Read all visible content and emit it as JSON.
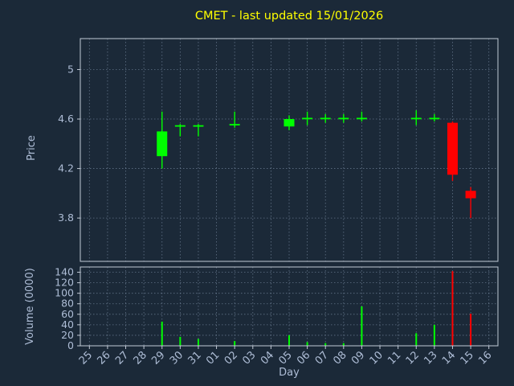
{
  "header": {
    "title": "CMET - last updated 15/01/2026"
  },
  "chart_data": {
    "type": "candlestick",
    "title": "CMET - last updated 15/01/2026",
    "xlabel": "Day",
    "ylabel": "Price",
    "ylabel2": "Volume (0000)",
    "x_tick_labels": [
      "25",
      "26",
      "27",
      "28",
      "29",
      "30",
      "31",
      "01",
      "02",
      "03",
      "04",
      "05",
      "06",
      "07",
      "08",
      "09",
      "10",
      "11",
      "12",
      "13",
      "14",
      "15",
      "16"
    ],
    "price_axis": {
      "ticks": [
        5,
        4.6,
        4.2,
        3.8
      ],
      "range": [
        3.45,
        5.25
      ]
    },
    "volume_axis": {
      "ticks": [
        140,
        120,
        100,
        80,
        60,
        40,
        20,
        0
      ],
      "range": [
        0,
        150
      ]
    },
    "colors": {
      "up": "#00ff00",
      "down": "#ff0000",
      "background": "#1b2938",
      "text": "#aebdd6",
      "title": "#ffff00",
      "grid": "#7e90a8",
      "frame": "#c2cad6"
    },
    "candles": [
      {
        "date": "29",
        "i": 4,
        "open": 4.3,
        "high": 4.66,
        "low": 4.2,
        "close": 4.5,
        "volume": 46
      },
      {
        "date": "30",
        "i": 5,
        "open": 4.55,
        "high": 4.56,
        "low": 4.46,
        "close": 4.55,
        "volume": 17
      },
      {
        "date": "31",
        "i": 6,
        "open": 4.55,
        "high": 4.56,
        "low": 4.46,
        "close": 4.55,
        "volume": 13
      },
      {
        "date": "02",
        "i": 8,
        "open": 4.55,
        "high": 4.66,
        "low": 4.53,
        "close": 4.56,
        "volume": 9
      },
      {
        "date": "05",
        "i": 11,
        "open": 4.54,
        "high": 4.63,
        "low": 4.51,
        "close": 4.6,
        "volume": 20
      },
      {
        "date": "06",
        "i": 12,
        "open": 4.6,
        "high": 4.66,
        "low": 4.55,
        "close": 4.61,
        "volume": 7
      },
      {
        "date": "07",
        "i": 13,
        "open": 4.6,
        "high": 4.64,
        "low": 4.57,
        "close": 4.61,
        "volume": 5
      },
      {
        "date": "08",
        "i": 14,
        "open": 4.6,
        "high": 4.64,
        "low": 4.57,
        "close": 4.61,
        "volume": 5
      },
      {
        "date": "09",
        "i": 15,
        "open": 4.6,
        "high": 4.66,
        "low": 4.58,
        "close": 4.61,
        "volume": 75
      },
      {
        "date": "12",
        "i": 18,
        "open": 4.6,
        "high": 4.67,
        "low": 4.55,
        "close": 4.61,
        "volume": 24
      },
      {
        "date": "13",
        "i": 19,
        "open": 4.6,
        "high": 4.64,
        "low": 4.58,
        "close": 4.61,
        "volume": 40
      },
      {
        "date": "14",
        "i": 20,
        "open": 4.57,
        "high": 4.58,
        "low": 4.1,
        "close": 4.15,
        "volume": 142
      },
      {
        "date": "15",
        "i": 21,
        "open": 4.02,
        "high": 4.05,
        "low": 3.8,
        "close": 3.96,
        "volume": 61
      }
    ]
  }
}
